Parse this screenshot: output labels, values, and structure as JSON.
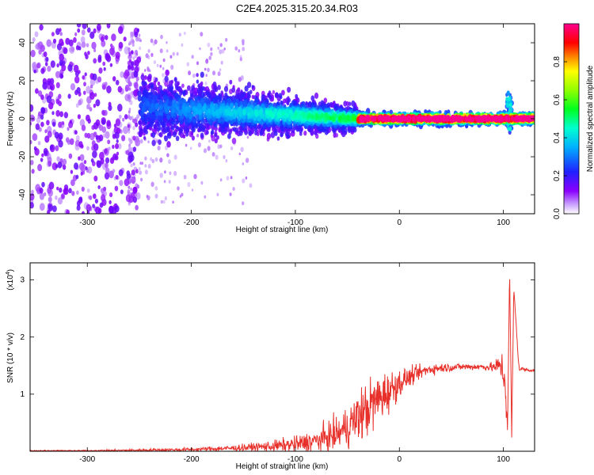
{
  "title": "C2E4.2025.315.20.34.R03",
  "chart_data": [
    {
      "type": "heatmap",
      "xlabel": "Height of straight line (km)",
      "ylabel": "Frequency (Hz)",
      "xlim": [
        -355,
        130
      ],
      "ylim": [
        -50,
        50
      ],
      "xticks": [
        -300,
        -200,
        -100,
        0,
        100
      ],
      "xtick_labels": [
        "-300",
        "-200",
        "-100",
        "0",
        "100"
      ],
      "yticks": [
        -40,
        -20,
        0,
        20,
        40
      ],
      "ytick_labels": [
        "-40",
        "-20",
        "0",
        "20",
        "40"
      ],
      "colorbar": {
        "label": "Normalized spectral amplitude",
        "range": [
          0,
          1
        ],
        "ticks": [
          0.0,
          0.2,
          0.4,
          0.6,
          0.8
        ],
        "tick_labels": [
          "0.0",
          "0.2",
          "0.4",
          "0.6",
          "0.8"
        ],
        "colormap": "rainbow (white, purple, blue, cyan, green, yellow, red, magenta)"
      },
      "features": [
        {
          "x_range": [
            -355,
            -250
          ],
          "freq_range": [
            -50,
            50
          ],
          "amplitude": "low, scattered noise"
        },
        {
          "x_range": [
            -250,
            -40
          ],
          "freq_center": [
            6,
            0
          ],
          "freq_halfwidth": [
            14,
            6
          ],
          "amplitude": "moderate, band narrowing and descending"
        },
        {
          "x_range": [
            -40,
            130
          ],
          "freq_center": 0,
          "freq_halfwidth": 3,
          "amplitude": "high, narrow band near 0 Hz, disturbance near 105 km"
        }
      ]
    },
    {
      "type": "line",
      "xlabel": "Height of straight line (km)",
      "ylabel": "SNR (10 * v/v)",
      "y_multiplier_label": "(x10",
      "y_multiplier_exp": "4",
      "xlim": [
        -355,
        130
      ],
      "ylim": [
        0,
        3.3
      ],
      "xticks": [
        -300,
        -200,
        -100,
        0,
        100
      ],
      "xtick_labels": [
        "-300",
        "-200",
        "-100",
        "0",
        "100"
      ],
      "yticks": [
        1,
        2,
        3
      ],
      "ytick_labels": [
        "1",
        "2",
        "3"
      ],
      "series": [
        {
          "color": "#e8302a",
          "x": [
            -355,
            -300,
            -250,
            -200,
            -150,
            -120,
            -100,
            -80,
            -60,
            -50,
            -40,
            -30,
            -20,
            -10,
            0,
            10,
            20,
            30,
            40,
            50,
            60,
            70,
            80,
            90,
            98,
            102,
            104,
            106,
            108,
            110,
            115,
            120,
            130
          ],
          "y": [
            0.01,
            0.01,
            0.02,
            0.03,
            0.06,
            0.09,
            0.12,
            0.18,
            0.3,
            0.42,
            0.6,
            0.75,
            0.92,
            1.05,
            1.2,
            1.3,
            1.38,
            1.44,
            1.46,
            1.47,
            1.48,
            1.48,
            1.48,
            1.47,
            1.5,
            1.2,
            0.4,
            3.15,
            0.3,
            2.85,
            1.45,
            1.43,
            1.42
          ],
          "noise_amplitude": [
            0.005,
            0.005,
            0.01,
            0.015,
            0.03,
            0.05,
            0.07,
            0.1,
            0.14,
            0.18,
            0.22,
            0.25,
            0.22,
            0.18,
            0.12,
            0.08,
            0.06,
            0.05,
            0.04,
            0.035,
            0.03,
            0.03,
            0.03,
            0.04,
            0.12,
            0.25,
            0.1,
            0.05,
            0.05,
            0.05,
            0.03,
            0.02,
            0.02
          ]
        }
      ]
    }
  ]
}
